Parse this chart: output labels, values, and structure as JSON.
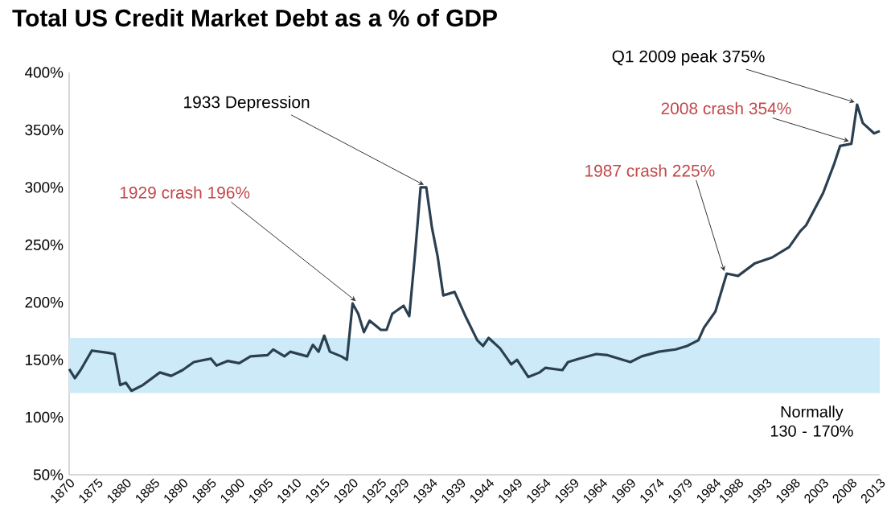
{
  "chart_data": {
    "type": "line",
    "title": "Total US Credit Market Debt as a % of GDP",
    "x": [
      1870,
      1871,
      1872,
      1874,
      1877,
      1878,
      1879,
      1880,
      1881,
      1883,
      1886,
      1888,
      1890,
      1892,
      1895,
      1896,
      1898,
      1900,
      1902,
      1905,
      1906,
      1908,
      1909,
      1912,
      1913,
      1914,
      1915,
      1916,
      1918,
      1919,
      1920,
      1921,
      1922,
      1923,
      1925,
      1926,
      1927,
      1929,
      1930,
      1931,
      1932,
      1933,
      1934,
      1935,
      1936,
      1938,
      1940,
      1942,
      1943,
      1944,
      1946,
      1948,
      1949,
      1951,
      1953,
      1954,
      1957,
      1958,
      1960,
      1963,
      1965,
      1967,
      1969,
      1971,
      1974,
      1977,
      1979,
      1981,
      1982,
      1984,
      1986,
      1988,
      1991,
      1994,
      1997,
      1999,
      2000,
      2003,
      2005,
      2006,
      2008,
      2009,
      2010,
      2012,
      2013
    ],
    "series": [
      {
        "color": "#2b3f50",
        "values": [
          142,
          134,
          141,
          158,
          156,
          155,
          128,
          130,
          123,
          128,
          139,
          136,
          141,
          148,
          151,
          145,
          149,
          147,
          153,
          154,
          159,
          153,
          157,
          153,
          163,
          157,
          171,
          157,
          153,
          150,
          199,
          190,
          174,
          184,
          176,
          176,
          190,
          197,
          188,
          241,
          300,
          300,
          265,
          240,
          206,
          209,
          187,
          167,
          162,
          169,
          160,
          146,
          150,
          135,
          139,
          143,
          141,
          148,
          151,
          155,
          154,
          151,
          148,
          153,
          157,
          159,
          162,
          167,
          178,
          192,
          225,
          223,
          234,
          239,
          248,
          262,
          267,
          295,
          321,
          336,
          338,
          372,
          356,
          347,
          349
        ]
      }
    ],
    "xlim": [
      1870,
      2013
    ],
    "xticks": [
      1870,
      1875,
      1880,
      1885,
      1890,
      1895,
      1900,
      1905,
      1910,
      1915,
      1920,
      1925,
      1929,
      1934,
      1939,
      1944,
      1949,
      1954,
      1959,
      1964,
      1969,
      1974,
      1979,
      1984,
      1988,
      1993,
      1998,
      2003,
      2008,
      2013
    ],
    "ylim": [
      50,
      400
    ],
    "yticks": [
      {
        "value": 50,
        "label": "50%"
      },
      {
        "value": 100,
        "label": "100%"
      },
      {
        "value": 150,
        "label": "150%"
      },
      {
        "value": 200,
        "label": "200%"
      },
      {
        "value": 250,
        "label": "250%"
      },
      {
        "value": 300,
        "label": "300%"
      },
      {
        "value": 350,
        "label": "350%"
      },
      {
        "value": 400,
        "label": "400%"
      }
    ],
    "bands": [
      {
        "axis": "y",
        "from": 121,
        "to": 169,
        "color": "#cdeaf8",
        "label": "Normally 130 - 170%"
      }
    ],
    "annotations": [
      {
        "text": "1933 Depression",
        "x": 1933,
        "y": 300
      },
      {
        "text": "1929 crash 196%",
        "x": 1921,
        "y": 199
      },
      {
        "text": "1987 crash 225%",
        "x": 1986,
        "y": 225
      },
      {
        "text": "2008 crash 354%",
        "x": 2008,
        "y": 338
      },
      {
        "text": "Q1 2009 peak 375%",
        "x": 2009,
        "y": 372
      }
    ],
    "grid": false,
    "marker": "none",
    "line_style": "solid"
  }
}
